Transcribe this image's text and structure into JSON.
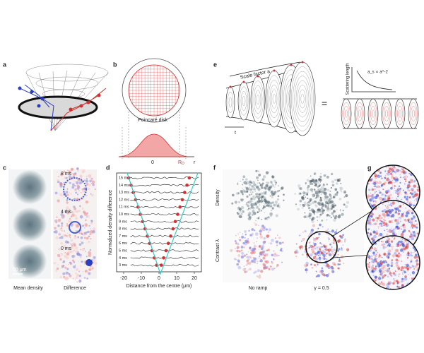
{
  "panels": {
    "a": {
      "label": "a"
    },
    "b": {
      "label": "b",
      "annotation": "Poincaré disk",
      "axis": {
        "zero": "0",
        "r_main": "R",
        "r_sub": "D",
        "r": "r"
      }
    },
    "e": {
      "label": "e",
      "scale_factor": "Scale factor a",
      "time": "t",
      "equals": "=",
      "inset_y": "Scattering length",
      "inset_formula": "a_s ∝ a^-2"
    },
    "c": {
      "label": "c",
      "times": [
        "8 ms",
        "4 ms",
        "0 ms"
      ],
      "scale_bar": "20 μm",
      "columns": [
        "Mean density",
        "Difference"
      ]
    },
    "d": {
      "label": "d",
      "times": [
        "15 ms",
        "14 ms",
        "13 ms",
        "12 ms",
        "11 ms",
        "10 ms",
        "9 ms",
        "8 ms",
        "7 ms",
        "6 ms",
        "5 ms",
        "4 ms",
        "3 ms"
      ],
      "xticks": [
        "-20",
        "-10",
        "0",
        "10",
        "20"
      ],
      "xlabel": "Distance from the centre (μm)",
      "ylabel": "Normalized density difference"
    },
    "f": {
      "label": "f",
      "rows": [
        "Density",
        "Contrast λ"
      ],
      "columns": [
        "No ramp",
        "γ = 0.5"
      ]
    },
    "g": {
      "label": "g"
    }
  }
}
